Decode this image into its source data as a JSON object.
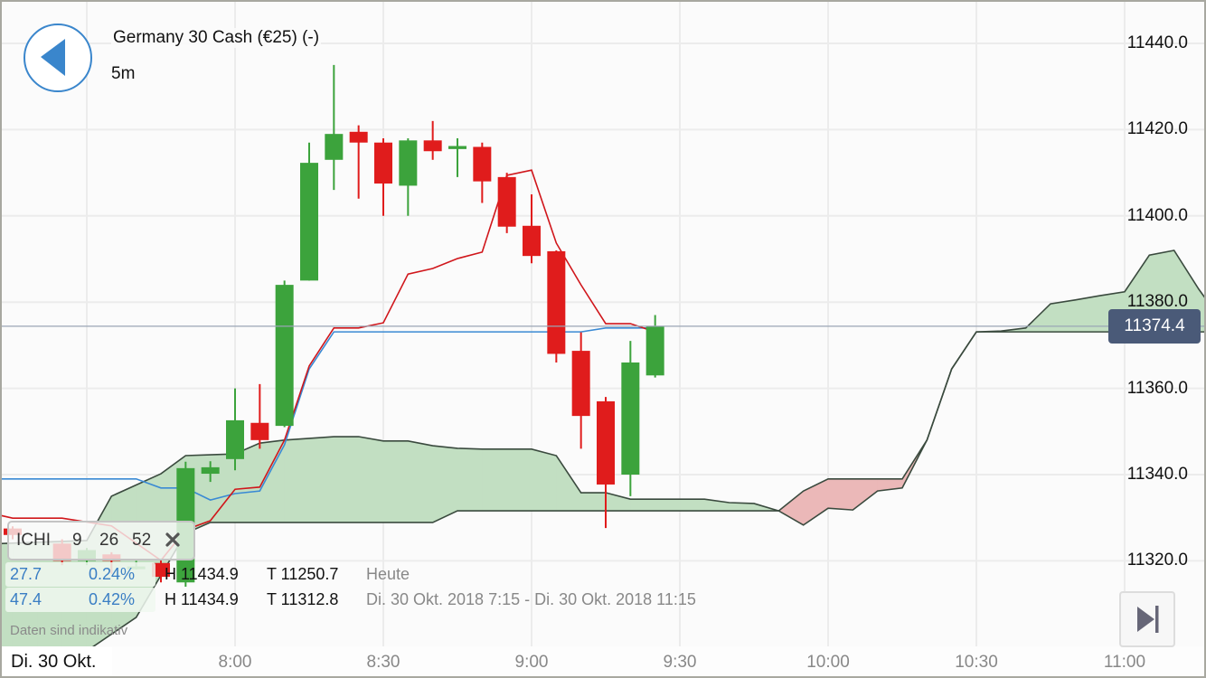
{
  "header": {
    "title": "Germany 30 Cash (€25) (-)",
    "interval": "5m"
  },
  "current_price": "11374.4",
  "colors": {
    "up": "#3ca33c",
    "down": "#e01c1c",
    "tenkan": "#d0161b",
    "kijun": "#3a8ad4",
    "cloud_bull": "#c2dfc2",
    "cloud_bear": "#ebb8b8",
    "cloud_line": "#3a4a3e",
    "price_line": "#9aa5b5",
    "price_badge": "#4a5a78"
  },
  "price_axis": [
    "11440.0",
    "11420.0",
    "11400.0",
    "11380.0",
    "11360.0",
    "11340.0",
    "11320.0"
  ],
  "time_axis": [
    "8:00",
    "8:30",
    "9:00",
    "9:30",
    "10:00",
    "10:30",
    "11:00"
  ],
  "date_label": "Di. 30 Okt.",
  "indicator": {
    "name": "ICHI",
    "p1": "9",
    "p2": "26",
    "p3": "52",
    "close_icon": "close-icon"
  },
  "info_rows": [
    {
      "change": "27.7",
      "pct": "0.24%",
      "high": "H 11434.9",
      "low": "T 11250.7",
      "period": "Heute"
    },
    {
      "change": "47.4",
      "pct": "0.42%",
      "high": "H 11434.9",
      "low": "T 11312.8",
      "period": "Di. 30 Okt. 2018 7:15 - Di. 30 Okt. 2018 11:15"
    }
  ],
  "disclaimer": "Daten sind indikativ",
  "icons": {
    "back": "back-triangle-icon",
    "jump_end": "skip-to-end-icon"
  },
  "chart_data": {
    "type": "candlestick",
    "y_range": [
      11300,
      11450
    ],
    "x_range": [
      "7:12",
      "11:15"
    ],
    "candles": [
      [
        "7:15",
        11327.5,
        11328,
        11325,
        11326
      ],
      [
        "7:25",
        11324,
        11325,
        11319,
        11320
      ],
      [
        "7:30",
        11320,
        11323,
        11319,
        11322.5
      ],
      [
        "7:35",
        11321.5,
        11322,
        11317,
        11320
      ],
      [
        "7:40",
        11318.6,
        11320,
        11318,
        11318.7
      ],
      [
        "7:45",
        11319.5,
        11320,
        11315,
        11316.3
      ],
      [
        "7:50",
        11315,
        11343,
        11314,
        11341.5
      ],
      [
        "7:55",
        11340.2,
        11343.1,
        11338.3,
        11341.7
      ],
      [
        "8:00",
        11343.6,
        11360,
        11341,
        11352.6
      ],
      [
        "8:05",
        11352,
        11361,
        11346,
        11348
      ],
      [
        "8:10",
        11351.3,
        11385,
        11351,
        11384
      ],
      [
        "8:15",
        11385,
        11417,
        11385,
        11412.3
      ],
      [
        "8:20",
        11413,
        11435,
        11406,
        11419
      ],
      [
        "8:25",
        11419.5,
        11421,
        11404,
        11417
      ],
      [
        "8:30",
        11417,
        11418,
        11400,
        11407.5
      ],
      [
        "8:35",
        11407,
        11418,
        11400,
        11417.5
      ],
      [
        "8:40",
        11417.5,
        11422,
        11413,
        11415
      ],
      [
        "8:45",
        11415.5,
        11418,
        11409,
        11416.2
      ],
      [
        "8:50",
        11416,
        11417,
        11403,
        11408
      ],
      [
        "8:55",
        11409,
        11410,
        11396,
        11397.5
      ],
      [
        "9:00",
        11397.7,
        11405,
        11389,
        11390.7
      ],
      [
        "9:05",
        11391.8,
        11392,
        11366,
        11368
      ],
      [
        "9:10",
        11368.7,
        11373,
        11346,
        11353.6
      ],
      [
        "9:15",
        11357,
        11358,
        11327.6,
        11337.7
      ],
      [
        "9:20",
        11340,
        11371,
        11335,
        11366
      ],
      [
        "9:25",
        11363,
        11377,
        11362.5,
        11374.4
      ]
    ],
    "tenkan": [
      [
        "7:10",
        11331.2
      ],
      [
        "7:15",
        11329.9
      ],
      [
        "7:25",
        11329.9
      ],
      [
        "7:35",
        11328.1
      ],
      [
        "7:45",
        11320.1
      ],
      [
        "7:50",
        11327.2
      ],
      [
        "7:55",
        11329.3
      ],
      [
        "8:00",
        11336.6
      ],
      [
        "8:05",
        11337.1
      ],
      [
        "8:10",
        11348.0
      ],
      [
        "8:15",
        11365.2
      ],
      [
        "8:20",
        11374.0
      ],
      [
        "8:25",
        11374.0
      ],
      [
        "8:30",
        11375.2
      ],
      [
        "8:35",
        11386.5
      ],
      [
        "8:40",
        11387.8
      ],
      [
        "8:45",
        11390.1
      ],
      [
        "8:50",
        11391.6
      ],
      [
        "8:55",
        11409.4
      ],
      [
        "9:00",
        11410.6
      ],
      [
        "9:05",
        11393.7
      ],
      [
        "9:10",
        11384.0
      ],
      [
        "9:15",
        11375.0
      ],
      [
        "9:20",
        11375.0
      ],
      [
        "9:25",
        11373.1
      ]
    ],
    "kijun": [
      [
        "7:10",
        11339.0
      ],
      [
        "7:40",
        11339.0
      ],
      [
        "7:45",
        11336.9
      ],
      [
        "7:50",
        11336.9
      ],
      [
        "7:55",
        11334.1
      ],
      [
        "8:00",
        11335.6
      ],
      [
        "8:05",
        11336.2
      ],
      [
        "8:10",
        11346.9
      ],
      [
        "8:15",
        11364.5
      ],
      [
        "8:20",
        11373.1
      ],
      [
        "9:10",
        11373.1
      ],
      [
        "9:15",
        11374.0
      ],
      [
        "9:25",
        11374.0
      ]
    ],
    "senkou_a": [
      [
        "7:10",
        11323.9
      ],
      [
        "7:30",
        11324.7
      ],
      [
        "7:35",
        11335.0
      ],
      [
        "7:45",
        11340.2
      ],
      [
        "7:50",
        11344.4
      ],
      [
        "7:55",
        11344.6
      ],
      [
        "8:00",
        11344.8
      ],
      [
        "8:05",
        11347.3
      ],
      [
        "8:10",
        11348.0
      ],
      [
        "8:15",
        11348.4
      ],
      [
        "8:20",
        11348.8
      ],
      [
        "8:25",
        11348.8
      ],
      [
        "8:30",
        11347.8
      ],
      [
        "8:35",
        11347.8
      ],
      [
        "8:40",
        11346.7
      ],
      [
        "8:45",
        11346.1
      ],
      [
        "8:50",
        11345.9
      ],
      [
        "9:00",
        11345.9
      ],
      [
        "9:05",
        11344.4
      ],
      [
        "9:10",
        11335.8
      ],
      [
        "9:15",
        11335.8
      ],
      [
        "9:20",
        11334.3
      ],
      [
        "9:35",
        11334.3
      ],
      [
        "9:40",
        11333.5
      ],
      [
        "9:45",
        11333.3
      ],
      [
        "9:50",
        11331.6
      ],
      [
        "9:55",
        11328.3
      ],
      [
        "10:00",
        11332.2
      ],
      [
        "10:05",
        11331.8
      ],
      [
        "10:10",
        11336.2
      ],
      [
        "10:15",
        11336.9
      ],
      [
        "10:20",
        11348.0
      ],
      [
        "10:25",
        11364.5
      ],
      [
        "10:30",
        11373.1
      ],
      [
        "10:35",
        11373.3
      ],
      [
        "10:40",
        11374.0
      ],
      [
        "10:45",
        11379.6
      ],
      [
        "10:50",
        11380.5
      ],
      [
        "10:55",
        11381.5
      ],
      [
        "11:00",
        11382.4
      ],
      [
        "11:05",
        11390.9
      ],
      [
        "11:10",
        11392.0
      ],
      [
        "11:15",
        11383.0
      ],
      [
        "11:20",
        11375.0
      ]
    ],
    "senkou_b": [
      [
        "7:10",
        11294.9
      ],
      [
        "7:30",
        11299.1
      ],
      [
        "7:40",
        11306.9
      ],
      [
        "7:50",
        11326.4
      ],
      [
        "7:55",
        11328.9
      ],
      [
        "8:40",
        11328.9
      ],
      [
        "8:45",
        11331.6
      ],
      [
        "9:50",
        11331.6
      ],
      [
        "9:55",
        11336.2
      ],
      [
        "10:00",
        11339.0
      ],
      [
        "10:15",
        11339.0
      ],
      [
        "10:20",
        11348.0
      ],
      [
        "10:25",
        11364.5
      ],
      [
        "10:30",
        11373.1
      ],
      [
        "11:20",
        11373.1
      ]
    ]
  }
}
